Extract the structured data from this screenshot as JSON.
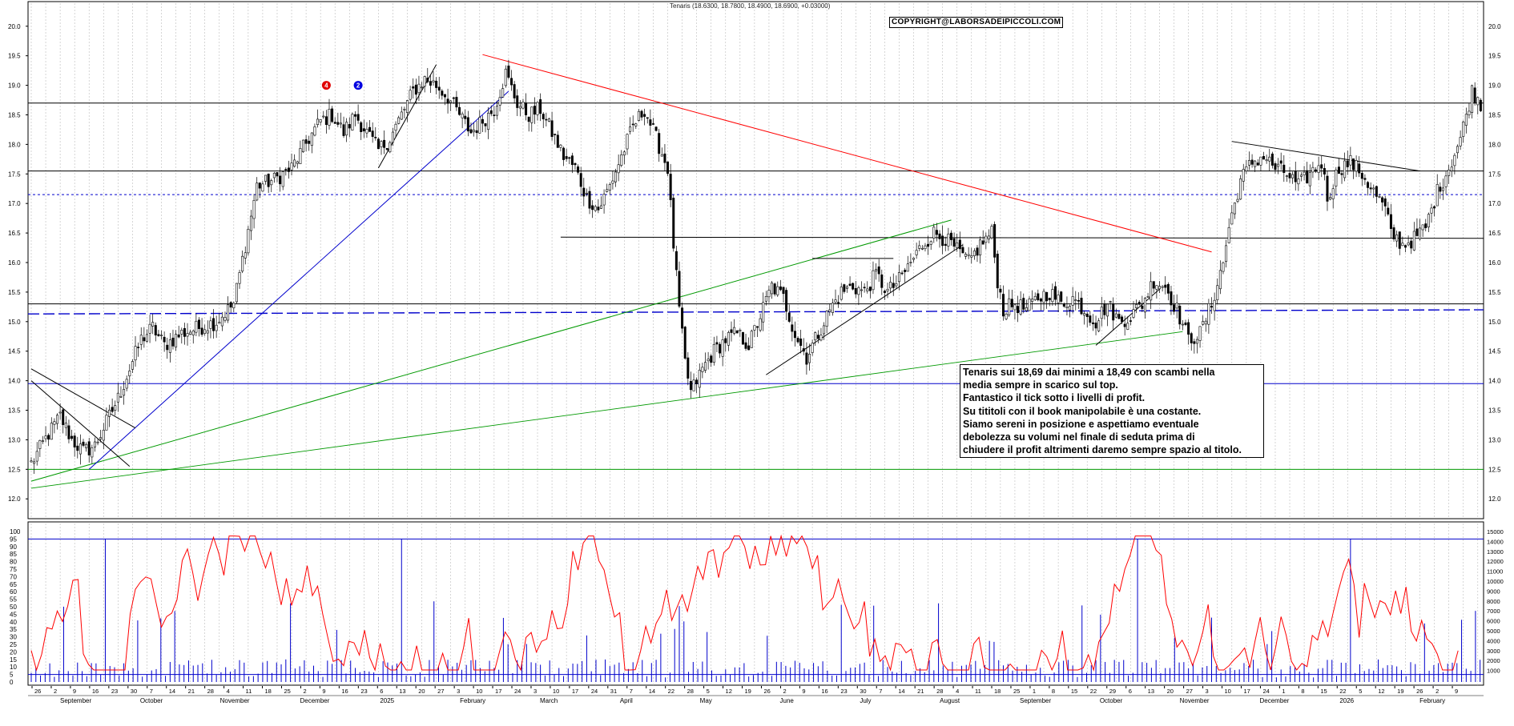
{
  "chart_data": [
    {
      "type": "candlestick",
      "title": "Tenaris (18.6300, 18.7800, 18.4900, 18.6900, +0.03000)",
      "watermark": "COPYRIGHT@LABORSADEIPICCOLI.COM",
      "ylim": [
        11.8,
        20.2
      ],
      "y_ticks": [
        "20.0",
        "19.5",
        "19.0",
        "18.5",
        "18.0",
        "17.5",
        "17.0",
        "16.5",
        "16.0",
        "15.5",
        "15.0",
        "14.5",
        "14.0",
        "13.5",
        "13.0",
        "12.5",
        "12.0"
      ],
      "price_keypoints": [
        [
          0,
          12.6
        ],
        [
          6,
          13.1
        ],
        [
          10,
          13.4
        ],
        [
          14,
          13.0
        ],
        [
          18,
          12.8
        ],
        [
          22,
          12.9
        ],
        [
          26,
          13.3
        ],
        [
          30,
          13.7
        ],
        [
          34,
          14.2
        ],
        [
          38,
          14.7
        ],
        [
          42,
          14.9
        ],
        [
          46,
          14.6
        ],
        [
          52,
          14.8
        ],
        [
          58,
          14.9
        ],
        [
          64,
          15.0
        ],
        [
          70,
          15.3
        ],
        [
          74,
          16.3
        ],
        [
          78,
          17.3
        ],
        [
          84,
          17.4
        ],
        [
          90,
          17.6
        ],
        [
          96,
          18.1
        ],
        [
          100,
          18.4
        ],
        [
          104,
          18.5
        ],
        [
          108,
          18.2
        ],
        [
          112,
          18.5
        ],
        [
          116,
          18.2
        ],
        [
          120,
          17.9
        ],
        [
          124,
          18.1
        ],
        [
          128,
          18.5
        ],
        [
          132,
          18.9
        ],
        [
          136,
          19.1
        ],
        [
          140,
          19.0
        ],
        [
          144,
          18.8
        ],
        [
          148,
          18.5
        ],
        [
          152,
          18.2
        ],
        [
          156,
          18.4
        ],
        [
          160,
          18.6
        ],
        [
          164,
          19.2
        ],
        [
          168,
          18.7
        ],
        [
          172,
          18.5
        ],
        [
          176,
          18.6
        ],
        [
          180,
          18.2
        ],
        [
          184,
          17.8
        ],
        [
          188,
          17.6
        ],
        [
          192,
          17.1
        ],
        [
          196,
          16.9
        ],
        [
          200,
          17.3
        ],
        [
          204,
          17.8
        ],
        [
          208,
          18.3
        ],
        [
          212,
          18.6
        ],
        [
          216,
          18.1
        ],
        [
          220,
          17.6
        ],
        [
          222,
          16.3
        ],
        [
          224,
          15.2
        ],
        [
          226,
          14.3
        ],
        [
          228,
          13.8
        ],
        [
          232,
          14.2
        ],
        [
          236,
          14.5
        ],
        [
          240,
          14.7
        ],
        [
          244,
          14.8
        ],
        [
          248,
          14.6
        ],
        [
          252,
          15.1
        ],
        [
          256,
          15.6
        ],
        [
          260,
          15.4
        ],
        [
          264,
          14.8
        ],
        [
          268,
          14.4
        ],
        [
          272,
          14.8
        ],
        [
          276,
          15.2
        ],
        [
          280,
          15.5
        ],
        [
          284,
          15.6
        ],
        [
          288,
          15.5
        ],
        [
          292,
          15.8
        ],
        [
          296,
          15.5
        ],
        [
          300,
          15.7
        ],
        [
          304,
          16.0
        ],
        [
          308,
          16.3
        ],
        [
          312,
          16.5
        ],
        [
          316,
          16.4
        ],
        [
          320,
          16.2
        ],
        [
          324,
          16.0
        ],
        [
          328,
          16.3
        ],
        [
          332,
          16.5
        ],
        [
          334,
          15.7
        ],
        [
          336,
          15.2
        ],
        [
          340,
          15.3
        ],
        [
          344,
          15.2
        ],
        [
          348,
          15.4
        ],
        [
          352,
          15.5
        ],
        [
          356,
          15.3
        ],
        [
          360,
          15.4
        ],
        [
          364,
          15.2
        ],
        [
          368,
          15.0
        ],
        [
          372,
          15.3
        ],
        [
          376,
          15.0
        ],
        [
          380,
          15.1
        ],
        [
          384,
          15.3
        ],
        [
          388,
          15.7
        ],
        [
          392,
          15.6
        ],
        [
          396,
          15.2
        ],
        [
          400,
          14.7
        ],
        [
          404,
          14.8
        ],
        [
          408,
          15.3
        ],
        [
          412,
          16.0
        ],
        [
          414,
          16.6
        ],
        [
          418,
          17.4
        ],
        [
          422,
          17.7
        ],
        [
          426,
          17.8
        ],
        [
          430,
          17.6
        ],
        [
          434,
          17.5
        ],
        [
          438,
          17.3
        ],
        [
          442,
          17.5
        ],
        [
          446,
          17.7
        ],
        [
          448,
          17.1
        ],
        [
          452,
          17.6
        ],
        [
          456,
          17.7
        ],
        [
          460,
          17.5
        ],
        [
          464,
          17.2
        ],
        [
          468,
          16.9
        ],
        [
          470,
          16.5
        ],
        [
          474,
          16.3
        ],
        [
          478,
          16.4
        ],
        [
          482,
          16.6
        ],
        [
          486,
          17.2
        ],
        [
          490,
          17.6
        ],
        [
          494,
          18.1
        ],
        [
          498,
          18.9
        ],
        [
          501,
          18.7
        ]
      ],
      "oscillator": {
        "ylim": [
          0,
          100
        ],
        "y_ticks": [
          "100",
          "95",
          "90",
          "85",
          "80",
          "75",
          "70",
          "65",
          "60",
          "55",
          "50",
          "45",
          "40",
          "35",
          "30",
          "25",
          "20",
          "15",
          "10",
          "5",
          "0"
        ],
        "upper_band": 95,
        "lower_band": 5
      },
      "volume": {
        "y_ticks": [
          "15000",
          "14000",
          "13000",
          "12000",
          "11000",
          "10000",
          "9000",
          "8000",
          "7000",
          "6000",
          "5000",
          "4000",
          "3000",
          "2000",
          "1000"
        ]
      },
      "x_axis": {
        "day_labels": [
          "26",
          "2",
          "9",
          "16",
          "23",
          "30",
          "7",
          "14",
          "21",
          "28",
          "4",
          "11",
          "18",
          "25",
          "2",
          "9",
          "16",
          "23",
          "6",
          "13",
          "20",
          "27",
          "3",
          "10",
          "17",
          "24",
          "3",
          "10",
          "17",
          "24",
          "31",
          "7",
          "14",
          "22",
          "28",
          "5",
          "12",
          "19",
          "26",
          "2",
          "9",
          "16",
          "23",
          "30",
          "7",
          "14",
          "21",
          "28",
          "4",
          "11",
          "18",
          "25",
          "1",
          "8",
          "15",
          "22",
          "29",
          "6",
          "13",
          "20",
          "27",
          "3",
          "10",
          "17",
          "24",
          "1",
          "8",
          "15",
          "22",
          "5",
          "12",
          "19",
          "26",
          "2",
          "9"
        ],
        "month_labels": [
          "September",
          "October",
          "November",
          "December",
          "2025",
          "February",
          "March",
          "April",
          "May",
          "June",
          "July",
          "August",
          "September",
          "October",
          "November",
          "December",
          "2026",
          "February"
        ]
      },
      "markers": [
        {
          "label": "4",
          "color": "#e00000"
        },
        {
          "label": "2",
          "color": "#0000e0"
        }
      ]
    }
  ],
  "annotation": {
    "text": "Tenaris sui 18,69 dai minimi a 18,49 con scambi nella\nmedia sempre in scarico sul top.\nFantastico il tick sotto i livelli di profit.\nSu tititoli con il book manipolabile è una costante.\nSiamo sereni in posizione e aspettiamo eventuale\ndebolezza su volumi nel finale di seduta  prima di\nchiudere il profit altrimenti daremo sempre spazio al titolo."
  },
  "colors": {
    "up_candle": "#ffffff",
    "down_candle": "#000000",
    "grid": "#bbbbbb",
    "oscillator": "#ff0000",
    "volume": "#0000cc",
    "hline_blue": "#0000cc",
    "trend_red": "#ff0000",
    "trend_green": "#009900",
    "trend_blue": "#0000cc"
  }
}
